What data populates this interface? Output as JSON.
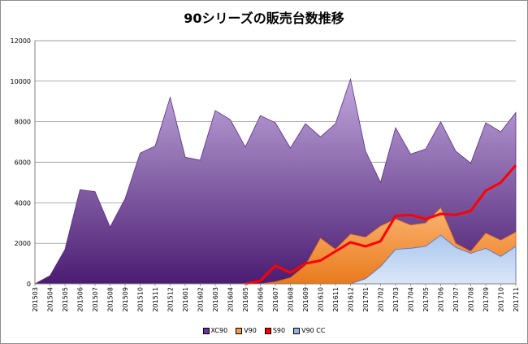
{
  "chart_data": {
    "type": "area",
    "title": "90シリーズの販売台数推移",
    "xlabel": "",
    "ylabel": "",
    "ylim": [
      0,
      12000
    ],
    "yticks": [
      0,
      2000,
      4000,
      6000,
      8000,
      10000,
      12000
    ],
    "ytick_labels": [
      "0",
      "2000",
      "4000",
      "6000",
      "8000",
      "10000",
      "12000"
    ],
    "grid": true,
    "legend_position": "bottom",
    "categories": [
      "201503",
      "201504",
      "201505",
      "201506",
      "201507",
      "201508",
      "201509",
      "201510",
      "201511",
      "201512",
      "201601",
      "201602",
      "201603",
      "201604",
      "201605",
      "201606",
      "201607",
      "201608",
      "201609",
      "201610",
      "201611",
      "201612",
      "201701",
      "201702",
      "201703",
      "201704",
      "201705",
      "201706",
      "201707",
      "201708",
      "201709",
      "201710",
      "201711"
    ],
    "series": [
      {
        "name": "XC90",
        "kind": "area",
        "color": "#7030a0",
        "values": [
          0,
          400,
          1700,
          4650,
          4550,
          2800,
          4200,
          6450,
          6800,
          9200,
          6250,
          6100,
          8550,
          8100,
          6750,
          8300,
          7950,
          6700,
          7900,
          7250,
          7900,
          10100,
          6550,
          5000,
          7700,
          6400,
          6650,
          8000,
          6550,
          5950,
          7950,
          7500,
          8450
        ]
      },
      {
        "name": "V90",
        "kind": "area",
        "color": "#f79646",
        "values": [
          0,
          0,
          0,
          0,
          0,
          0,
          0,
          0,
          0,
          0,
          0,
          0,
          0,
          0,
          0,
          0,
          100,
          300,
          900,
          2250,
          1700,
          2450,
          2300,
          2850,
          3200,
          2900,
          3000,
          3750,
          2000,
          1600,
          2500,
          2150,
          2550
        ]
      },
      {
        "name": "S90",
        "kind": "line",
        "color": "#ff0000",
        "values": [
          null,
          null,
          null,
          null,
          null,
          null,
          null,
          null,
          null,
          null,
          null,
          null,
          null,
          null,
          0,
          150,
          900,
          550,
          1000,
          1150,
          1600,
          2050,
          1850,
          2100,
          3350,
          3400,
          3200,
          3450,
          3400,
          3600,
          4600,
          5000,
          5850
        ]
      },
      {
        "name": "V90 CC",
        "kind": "area",
        "color": "#95b3d7",
        "values": [
          0,
          0,
          0,
          0,
          0,
          0,
          0,
          0,
          0,
          0,
          0,
          0,
          0,
          0,
          0,
          0,
          0,
          0,
          0,
          0,
          0,
          0,
          250,
          850,
          1700,
          1750,
          1850,
          2400,
          1800,
          1500,
          1750,
          1350,
          1850
        ]
      }
    ]
  }
}
